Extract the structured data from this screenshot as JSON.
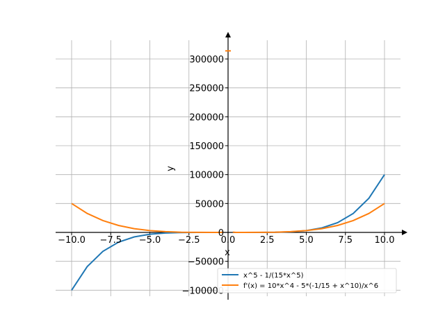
{
  "chart_data": {
    "type": "line",
    "title": "",
    "xlabel": "x",
    "ylabel": "y",
    "xlim": [
      -11,
      11
    ],
    "ylim": [
      -110000,
      345000
    ],
    "x_ticks": [
      -10.0,
      -7.5,
      -5.0,
      -2.5,
      0.0,
      2.5,
      5.0,
      7.5,
      10.0
    ],
    "x_tick_labels": [
      "−10.0",
      "−7.5",
      "−5.0",
      "−2.5",
      "0.0",
      "2.5",
      "5.0",
      "7.5",
      "10.0"
    ],
    "y_ticks": [
      -100000,
      -50000,
      0,
      50000,
      100000,
      150000,
      200000,
      250000,
      300000
    ],
    "y_tick_labels": [
      "−100000",
      "−50000",
      "0",
      "50000",
      "100000",
      "150000",
      "200000",
      "250000",
      "300000"
    ],
    "grid": true,
    "legend_position": "lower-right",
    "series": [
      {
        "name": "x^5 - 1/(15*x^5)",
        "color": "#1f77b4",
        "segments": [
          {
            "x": [
              -10,
              -9,
              -8,
              -7,
              -6,
              -5,
              -4,
              -3,
              -2,
              -1,
              -0.5,
              -0.3
            ],
            "y": [
              -100000,
              -59049,
              -32768,
              -16807,
              -7776,
              -3125,
              -1024,
              -243,
              -32,
              -1,
              2,
              27
            ]
          },
          {
            "x": [
              0.3,
              0.5,
              1,
              2,
              3,
              4,
              5,
              6,
              7,
              8,
              9,
              10
            ],
            "y": [
              -27,
              -2,
              1,
              32,
              243,
              1024,
              3125,
              7776,
              16807,
              32768,
              59049,
              100000
            ]
          }
        ]
      },
      {
        "name": "f'(x) = 10*x^4 - 5*(-1/15 + x^10)/x^6",
        "color": "#ff7f0e",
        "segments": [
          {
            "x": [
              -10,
              -9,
              -8,
              -7,
              -6,
              -5,
              -4,
              -3,
              -2,
              -1,
              -0.5,
              -0.3
            ],
            "y": [
              50000,
              32805,
              20480,
              12005,
              6480,
              3125,
              1280,
              405,
              80,
              5,
              21,
              458
            ]
          },
          {
            "x": [
              0.3,
              0.5,
              1,
              2,
              3,
              4,
              5,
              6,
              7,
              8,
              9,
              10
            ],
            "y": [
              458,
              21,
              5,
              80,
              405,
              1280,
              3125,
              6480,
              12005,
              20480,
              32805,
              50000
            ]
          }
        ],
        "marks": [
          {
            "x": 0.0,
            "y": 314000
          }
        ]
      }
    ]
  }
}
